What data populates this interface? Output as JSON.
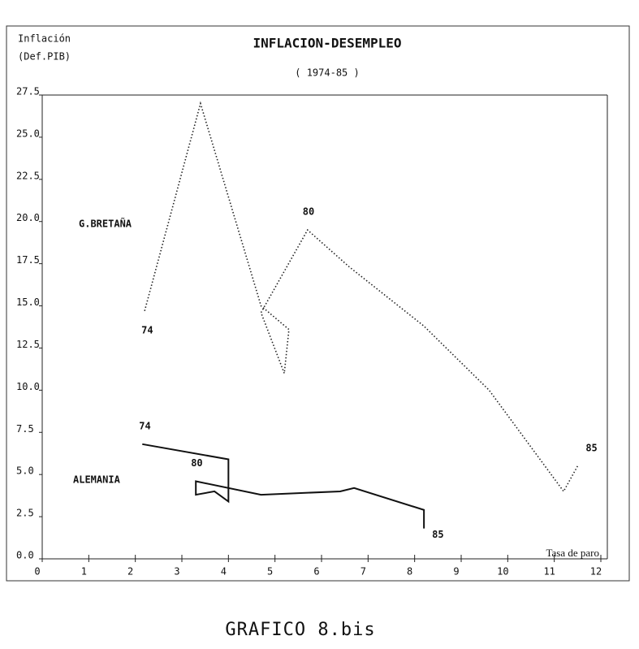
{
  "chart_data": {
    "type": "line",
    "title": "INFLACION-DESEMPLEO",
    "subtitle": "( 1974-85 )",
    "y_label": [
      "Inflación",
      "(Def.PIB)"
    ],
    "x_label": "Tasa de paro",
    "caption": "GRAFICO 8.bis",
    "xlim": [
      0,
      12
    ],
    "ylim": [
      0,
      27.5
    ],
    "xticks": [
      0,
      1,
      2,
      3,
      4,
      5,
      6,
      7,
      8,
      9,
      10,
      11,
      12
    ],
    "yticks": [
      {
        "value": 0,
        "label": "0.0"
      },
      {
        "value": 2.5,
        "label": "2.5"
      },
      {
        "value": 5,
        "label": "5.0"
      },
      {
        "value": 7.5,
        "label": "7.5"
      },
      {
        "value": 10,
        "label": "10.0"
      },
      {
        "value": 12.5,
        "label": "12.5"
      },
      {
        "value": 15,
        "label": "15.0"
      },
      {
        "value": 17.5,
        "label": "17.5"
      },
      {
        "value": 20,
        "label": "20.0"
      },
      {
        "value": 22.5,
        "label": "22.5"
      },
      {
        "value": 25,
        "label": "25.0"
      },
      {
        "value": 27.5,
        "label": "27.5"
      }
    ],
    "series": [
      {
        "name": "G.BRETAÑA",
        "color": "#222",
        "style": "dotted",
        "x": [
          2.2,
          3.4,
          4.7,
          5.3,
          5.2,
          4.7,
          5.7,
          6.6,
          8.2,
          9.6,
          11.2,
          11.5
        ],
        "values": [
          14.7,
          27.0,
          15.0,
          13.6,
          11.0,
          14.6,
          19.5,
          17.3,
          13.8,
          10.0,
          4.0,
          5.5
        ],
        "point_labels": [
          "74",
          null,
          null,
          null,
          null,
          null,
          "80",
          null,
          null,
          null,
          null,
          "85"
        ]
      },
      {
        "name": "ALEMANIA",
        "color": "#111",
        "style": "solid",
        "x": [
          2.15,
          4.0,
          4.0,
          3.7,
          3.3,
          3.3,
          4.7,
          6.4,
          6.7,
          8.2,
          8.2,
          8.2
        ],
        "values": [
          6.8,
          5.9,
          3.4,
          4.0,
          3.8,
          4.6,
          3.8,
          4.0,
          4.2,
          2.9,
          1.8,
          1.8
        ],
        "point_labels": [
          "74",
          null,
          null,
          null,
          null,
          "80",
          null,
          null,
          null,
          null,
          null,
          "85"
        ]
      }
    ]
  }
}
